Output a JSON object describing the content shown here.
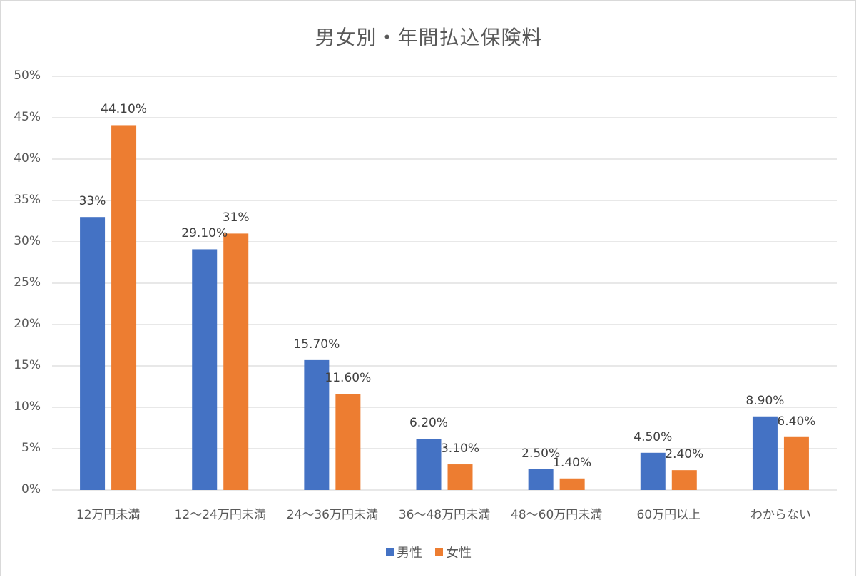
{
  "chart_data": {
    "type": "bar",
    "title": "男女別・年間払込保険料",
    "xlabel": "",
    "ylabel": "",
    "ylim": [
      0,
      50
    ],
    "y_ticks": [
      "0%",
      "5%",
      "10%",
      "15%",
      "20%",
      "25%",
      "30%",
      "35%",
      "40%",
      "45%",
      "50%"
    ],
    "grid": true,
    "legend_position": "bottom",
    "categories": [
      "12万円未満",
      "12～24万円未満",
      "24～36万円未満",
      "36～48万円未満",
      "48～60万円未満",
      "60万円以上",
      "わからない"
    ],
    "series": [
      {
        "name": "男性",
        "color": "#4472c4",
        "values": [
          33,
          29.1,
          15.7,
          6.2,
          2.5,
          4.5,
          8.9
        ],
        "labels": [
          "33%",
          "29.10%",
          "15.70%",
          "6.20%",
          "2.50%",
          "4.50%",
          "8.90%"
        ]
      },
      {
        "name": "女性",
        "color": "#ed7d31",
        "values": [
          44.1,
          31,
          11.6,
          3.1,
          1.4,
          2.4,
          6.4
        ],
        "labels": [
          "44.10%",
          "31%",
          "11.60%",
          "3.10%",
          "1.40%",
          "2.40%",
          "6.40%"
        ]
      }
    ]
  },
  "legend": {
    "items": [
      {
        "label": "男性",
        "color": "#4472c4"
      },
      {
        "label": "女性",
        "color": "#ed7d31"
      }
    ]
  }
}
